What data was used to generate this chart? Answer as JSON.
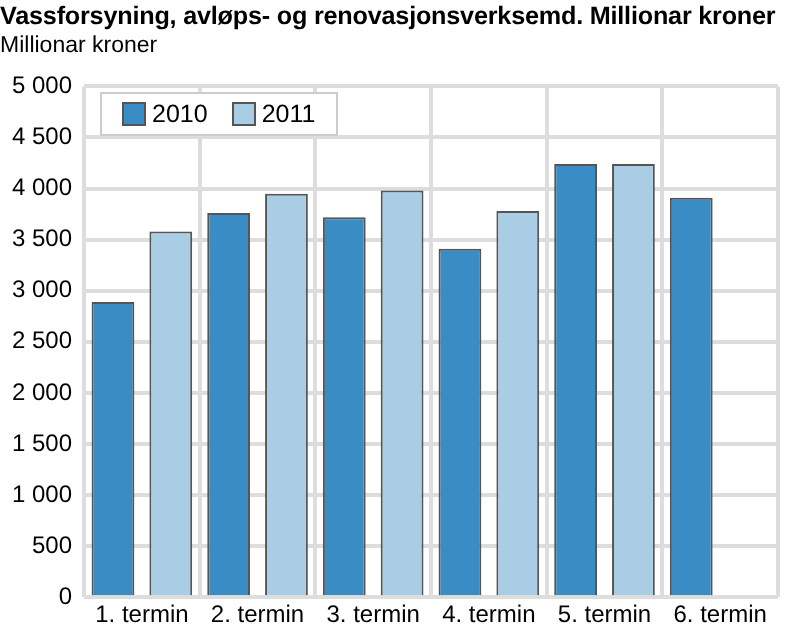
{
  "chart_data": {
    "type": "bar",
    "title": "Vassforsyning, avløps- og renovasjonsverksemd. Millionar kroner",
    "subtitle": "Millionar kroner",
    "categories": [
      "1. termin",
      "2. termin",
      "3. termin",
      "4. termin",
      "5. termin",
      "6. termin"
    ],
    "series": [
      {
        "name": "2010",
        "color": "#3a8cc4",
        "values": [
          2890,
          3760,
          3720,
          3410,
          4240,
          3910
        ]
      },
      {
        "name": "2011",
        "color": "#a9cde4",
        "values": [
          3580,
          3950,
          3980,
          3780,
          4240,
          null
        ]
      }
    ],
    "ylim": [
      0,
      5000
    ],
    "yticks": [
      {
        "value": 0,
        "label": "0"
      },
      {
        "value": 500,
        "label": "500"
      },
      {
        "value": 1000,
        "label": "1 000"
      },
      {
        "value": 1500,
        "label": "1 500"
      },
      {
        "value": 2000,
        "label": "2 000"
      },
      {
        "value": 2500,
        "label": "2 500"
      },
      {
        "value": 3000,
        "label": "3 000"
      },
      {
        "value": 3500,
        "label": "3 500"
      },
      {
        "value": 4000,
        "label": "4 000"
      },
      {
        "value": 4500,
        "label": "4 500"
      },
      {
        "value": 5000,
        "label": "5 000"
      }
    ],
    "grid": true,
    "legend": "top left"
  }
}
